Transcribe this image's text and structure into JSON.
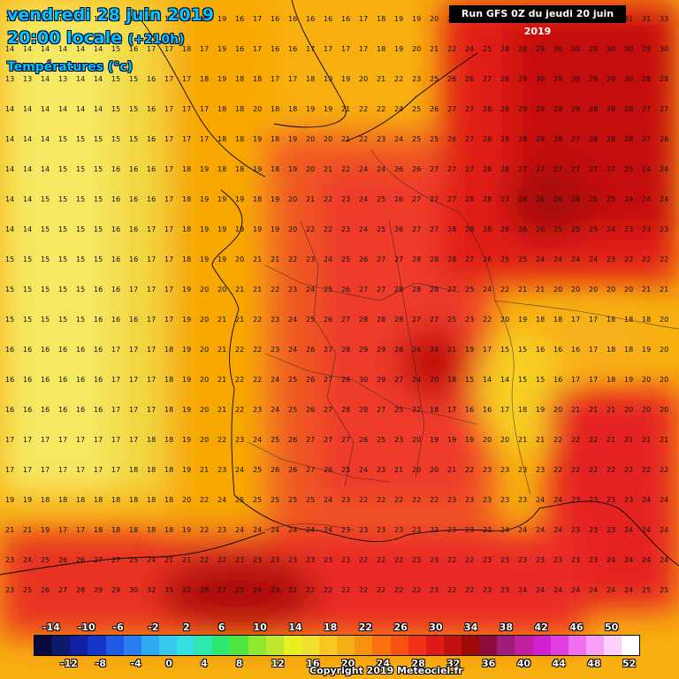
{
  "header": {
    "date_line": "vendredi 28 juin 2019",
    "time_main": "20:00 locale ",
    "time_offset": "(+210h)",
    "variable": "Températures (°c)"
  },
  "run_box": "Run GFS 0Z du jeudi 20 juin 2019",
  "copyright": "Copyright 2019 Meteociel.fr",
  "legend": {
    "top_ticks": [
      "-14",
      "-10",
      "-6",
      "-2",
      "2",
      "6",
      "10",
      "14",
      "18",
      "22",
      "26",
      "30",
      "34",
      "38",
      "42",
      "46",
      "50"
    ],
    "bottom_ticks": [
      "-12",
      "-8",
      "-4",
      "0",
      "4",
      "8",
      "12",
      "16",
      "20",
      "24",
      "28",
      "32",
      "36",
      "40",
      "44",
      "48",
      "52"
    ],
    "colors": [
      "#0a0a3c",
      "#0b1a6b",
      "#1020a0",
      "#1535c8",
      "#1e5ae6",
      "#2a7df0",
      "#2ea8f0",
      "#37c8f0",
      "#37e0e0",
      "#2ee8b0",
      "#30e870",
      "#50e840",
      "#90e830",
      "#c0e830",
      "#e8f020",
      "#f0e030",
      "#f8c820",
      "#f8b018",
      "#f89010",
      "#f87010",
      "#f85010",
      "#f03018",
      "#e01818",
      "#c01010",
      "#a00808",
      "#8c0a3c",
      "#a01c78",
      "#c020a0",
      "#d020d0",
      "#e040e0",
      "#f070f0",
      "#f8a0f8",
      "#fcd0fc",
      "#ffffff"
    ]
  },
  "legend_values_top_count": 17,
  "map": {
    "region_colors": {
      "cool": "#f0e04a",
      "mild": "#f8c818",
      "warm": "#f8a000",
      "warmer": "#f88010",
      "hot": "#f04020",
      "very_hot": "#e01818",
      "extreme": "#b00808",
      "hottest": "#8c0000"
    },
    "grid_rows": [
      [
        "14",
        "14",
        "14",
        "14",
        "13",
        "14",
        "15",
        "16",
        "17",
        "17",
        "18",
        "19",
        "19",
        "16",
        "17",
        "16",
        "16",
        "16",
        "16",
        "16",
        "17",
        "18",
        "19",
        "19",
        "20",
        "21",
        "23",
        "26",
        "27",
        "28",
        "28",
        "29",
        "30",
        "30",
        "30",
        "31",
        "31",
        "33",
        "31"
      ],
      [
        "14",
        "14",
        "14",
        "14",
        "14",
        "14",
        "15",
        "16",
        "17",
        "17",
        "18",
        "17",
        "19",
        "16",
        "17",
        "16",
        "16",
        "17",
        "17",
        "17",
        "17",
        "18",
        "19",
        "20",
        "21",
        "22",
        "24",
        "25",
        "28",
        "28",
        "29",
        "30",
        "30",
        "29",
        "30",
        "30",
        "29",
        "30",
        "30"
      ],
      [
        "13",
        "13",
        "14",
        "13",
        "14",
        "14",
        "15",
        "15",
        "16",
        "17",
        "17",
        "18",
        "19",
        "18",
        "18",
        "17",
        "17",
        "18",
        "19",
        "19",
        "20",
        "21",
        "22",
        "23",
        "25",
        "26",
        "26",
        "27",
        "28",
        "29",
        "30",
        "29",
        "30",
        "29",
        "29",
        "30",
        "28",
        "28"
      ],
      [
        "14",
        "14",
        "14",
        "14",
        "14",
        "14",
        "15",
        "15",
        "16",
        "17",
        "17",
        "17",
        "18",
        "18",
        "20",
        "18",
        "18",
        "19",
        "19",
        "21",
        "22",
        "22",
        "24",
        "25",
        "26",
        "27",
        "27",
        "28",
        "28",
        "29",
        "29",
        "29",
        "29",
        "28",
        "28",
        "28",
        "27",
        "27"
      ],
      [
        "14",
        "14",
        "14",
        "15",
        "15",
        "15",
        "15",
        "15",
        "16",
        "17",
        "17",
        "17",
        "18",
        "18",
        "19",
        "18",
        "19",
        "20",
        "20",
        "21",
        "22",
        "23",
        "24",
        "25",
        "25",
        "26",
        "27",
        "28",
        "28",
        "28",
        "28",
        "28",
        "27",
        "28",
        "28",
        "28",
        "27",
        "26"
      ],
      [
        "14",
        "14",
        "14",
        "15",
        "15",
        "15",
        "16",
        "16",
        "16",
        "17",
        "18",
        "19",
        "18",
        "18",
        "19",
        "18",
        "19",
        "20",
        "21",
        "22",
        "24",
        "24",
        "26",
        "26",
        "27",
        "27",
        "27",
        "28",
        "28",
        "27",
        "27",
        "27",
        "27",
        "27",
        "27",
        "25",
        "24",
        "24"
      ],
      [
        "14",
        "14",
        "15",
        "15",
        "15",
        "15",
        "16",
        "16",
        "16",
        "17",
        "18",
        "19",
        "19",
        "19",
        "18",
        "19",
        "20",
        "21",
        "22",
        "23",
        "24",
        "25",
        "26",
        "27",
        "27",
        "27",
        "28",
        "28",
        "27",
        "26",
        "26",
        "26",
        "26",
        "26",
        "25",
        "24",
        "24",
        "24"
      ],
      [
        "14",
        "14",
        "15",
        "15",
        "15",
        "15",
        "16",
        "16",
        "17",
        "17",
        "18",
        "19",
        "19",
        "19",
        "19",
        "19",
        "20",
        "22",
        "22",
        "23",
        "24",
        "25",
        "26",
        "27",
        "27",
        "28",
        "28",
        "28",
        "26",
        "26",
        "26",
        "25",
        "25",
        "25",
        "24",
        "23",
        "23",
        "23"
      ],
      [
        "15",
        "15",
        "15",
        "15",
        "15",
        "15",
        "16",
        "16",
        "17",
        "17",
        "18",
        "19",
        "19",
        "20",
        "21",
        "21",
        "22",
        "23",
        "24",
        "25",
        "26",
        "27",
        "27",
        "28",
        "28",
        "28",
        "27",
        "26",
        "25",
        "25",
        "24",
        "24",
        "24",
        "24",
        "23",
        "22",
        "22",
        "22"
      ],
      [
        "15",
        "15",
        "15",
        "15",
        "15",
        "16",
        "16",
        "17",
        "17",
        "17",
        "19",
        "20",
        "20",
        "21",
        "21",
        "22",
        "23",
        "24",
        "25",
        "26",
        "27",
        "27",
        "28",
        "28",
        "28",
        "27",
        "25",
        "24",
        "22",
        "21",
        "21",
        "20",
        "20",
        "20",
        "20",
        "20",
        "21",
        "21"
      ],
      [
        "15",
        "15",
        "15",
        "15",
        "15",
        "16",
        "16",
        "16",
        "17",
        "17",
        "19",
        "20",
        "21",
        "21",
        "22",
        "23",
        "24",
        "25",
        "26",
        "27",
        "28",
        "28",
        "28",
        "27",
        "27",
        "25",
        "23",
        "22",
        "20",
        "19",
        "18",
        "18",
        "17",
        "17",
        "18",
        "18",
        "18",
        "20"
      ],
      [
        "16",
        "16",
        "16",
        "16",
        "16",
        "16",
        "17",
        "17",
        "17",
        "18",
        "19",
        "20",
        "21",
        "22",
        "22",
        "23",
        "24",
        "26",
        "27",
        "28",
        "29",
        "29",
        "28",
        "26",
        "24",
        "21",
        "19",
        "17",
        "15",
        "15",
        "16",
        "16",
        "16",
        "17",
        "18",
        "18",
        "19",
        "20"
      ],
      [
        "16",
        "16",
        "16",
        "16",
        "16",
        "16",
        "17",
        "17",
        "17",
        "18",
        "19",
        "20",
        "21",
        "22",
        "22",
        "24",
        "25",
        "26",
        "27",
        "28",
        "30",
        "29",
        "27",
        "24",
        "20",
        "18",
        "15",
        "14",
        "14",
        "15",
        "15",
        "16",
        "17",
        "17",
        "18",
        "19",
        "20",
        "20"
      ],
      [
        "16",
        "16",
        "16",
        "16",
        "16",
        "16",
        "17",
        "17",
        "17",
        "18",
        "19",
        "20",
        "21",
        "22",
        "23",
        "24",
        "25",
        "26",
        "27",
        "28",
        "28",
        "27",
        "25",
        "22",
        "18",
        "17",
        "16",
        "16",
        "17",
        "18",
        "19",
        "20",
        "21",
        "21",
        "21",
        "20",
        "20",
        "20"
      ],
      [
        "17",
        "17",
        "17",
        "17",
        "17",
        "17",
        "17",
        "17",
        "18",
        "18",
        "19",
        "20",
        "22",
        "23",
        "24",
        "25",
        "26",
        "27",
        "27",
        "27",
        "26",
        "25",
        "23",
        "20",
        "19",
        "19",
        "19",
        "20",
        "20",
        "21",
        "21",
        "22",
        "22",
        "22",
        "21",
        "21",
        "21",
        "21"
      ],
      [
        "17",
        "17",
        "17",
        "17",
        "17",
        "17",
        "17",
        "18",
        "18",
        "18",
        "19",
        "21",
        "23",
        "24",
        "25",
        "26",
        "26",
        "27",
        "26",
        "25",
        "24",
        "23",
        "21",
        "20",
        "20",
        "21",
        "22",
        "23",
        "23",
        "23",
        "23",
        "22",
        "22",
        "22",
        "22",
        "22",
        "22",
        "22"
      ],
      [
        "19",
        "19",
        "18",
        "18",
        "18",
        "18",
        "18",
        "18",
        "18",
        "18",
        "20",
        "22",
        "24",
        "25",
        "25",
        "25",
        "25",
        "25",
        "24",
        "23",
        "22",
        "22",
        "22",
        "22",
        "22",
        "23",
        "23",
        "23",
        "23",
        "23",
        "24",
        "24",
        "23",
        "23",
        "23",
        "23",
        "24",
        "24"
      ],
      [
        "21",
        "21",
        "19",
        "17",
        "17",
        "18",
        "18",
        "18",
        "18",
        "18",
        "19",
        "22",
        "23",
        "24",
        "24",
        "24",
        "24",
        "24",
        "24",
        "23",
        "23",
        "23",
        "23",
        "23",
        "23",
        "23",
        "23",
        "23",
        "24",
        "24",
        "24",
        "24",
        "23",
        "23",
        "23",
        "24",
        "24",
        "24"
      ],
      [
        "23",
        "24",
        "25",
        "26",
        "26",
        "27",
        "27",
        "25",
        "24",
        "21",
        "21",
        "22",
        "22",
        "23",
        "23",
        "23",
        "23",
        "23",
        "23",
        "23",
        "22",
        "22",
        "22",
        "23",
        "23",
        "22",
        "22",
        "23",
        "23",
        "23",
        "23",
        "23",
        "23",
        "23",
        "24",
        "24",
        "24",
        "24"
      ],
      [
        "23",
        "25",
        "26",
        "27",
        "28",
        "29",
        "29",
        "30",
        "32",
        "35",
        "32",
        "29",
        "27",
        "25",
        "24",
        "23",
        "22",
        "22",
        "22",
        "22",
        "22",
        "22",
        "22",
        "22",
        "23",
        "22",
        "22",
        "23",
        "23",
        "24",
        "24",
        "24",
        "24",
        "24",
        "24",
        "24",
        "25",
        "25"
      ]
    ]
  }
}
